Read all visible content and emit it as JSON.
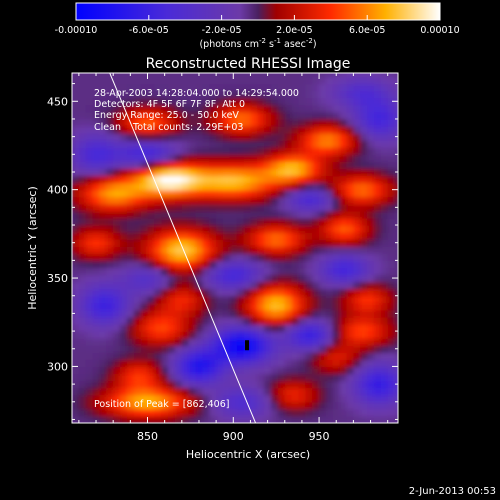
{
  "chart_data": {
    "type": "heatmap",
    "title": "Reconstructed RHESSI Image",
    "xlabel": "Heliocentric X (arcsec)",
    "ylabel": "Heliocentric Y (arcsec)",
    "xlim": [
      806,
      996
    ],
    "ylim": [
      268,
      466
    ],
    "xticks": [
      850,
      900,
      950
    ],
    "yticks": [
      300,
      350,
      400,
      450
    ],
    "colorbar": {
      "ticks": [
        "-0.00010",
        "-6.0e-05",
        "-2.0e-05",
        "2.0e-05",
        "6.0e-05",
        "0.00010"
      ],
      "range": [
        -0.0001,
        0.0001
      ],
      "unit_label": "(photons cm",
      "unit_sup1": "-2",
      "unit_mid": " s",
      "unit_sup2": "-1",
      "unit_end": " asec",
      "unit_sup3": "-2",
      "unit_close": ")"
    },
    "annotations": {
      "time_range": "28-Apr-2003 14:28:04.000 to 14:29:54.000",
      "detectors": "Detectors: 4F 5F 6F 7F 8F, Att 0",
      "energy_range": "Energy Range: 25.0 - 50.0 keV",
      "clean_totals": "Clean    Total counts: 2.29E+03",
      "peak_position": "Position of Peak = [862,406]"
    },
    "peak": [
      862,
      406
    ],
    "limb_line": [
      [
        828,
        466
      ],
      [
        913,
        268
      ]
    ],
    "blobs": [
      {
        "x": 862,
        "y": 406,
        "v": 1.0,
        "sx": 14,
        "sy": 7
      },
      {
        "x": 830,
        "y": 398,
        "v": 0.7,
        "sx": 14,
        "sy": 7
      },
      {
        "x": 900,
        "y": 405,
        "v": 0.8,
        "sx": 18,
        "sy": 7
      },
      {
        "x": 935,
        "y": 412,
        "v": 0.75,
        "sx": 12,
        "sy": 6
      },
      {
        "x": 975,
        "y": 400,
        "v": 0.6,
        "sx": 12,
        "sy": 6
      },
      {
        "x": 870,
        "y": 366,
        "v": 0.85,
        "sx": 14,
        "sy": 8
      },
      {
        "x": 820,
        "y": 370,
        "v": 0.45,
        "sx": 10,
        "sy": 6
      },
      {
        "x": 925,
        "y": 372,
        "v": 0.6,
        "sx": 12,
        "sy": 6
      },
      {
        "x": 965,
        "y": 378,
        "v": 0.55,
        "sx": 10,
        "sy": 6
      },
      {
        "x": 850,
        "y": 438,
        "v": 0.55,
        "sx": 12,
        "sy": 6
      },
      {
        "x": 905,
        "y": 440,
        "v": 0.6,
        "sx": 12,
        "sy": 6
      },
      {
        "x": 955,
        "y": 428,
        "v": 0.65,
        "sx": 12,
        "sy": 6
      },
      {
        "x": 925,
        "y": 335,
        "v": 0.8,
        "sx": 12,
        "sy": 8
      },
      {
        "x": 870,
        "y": 338,
        "v": 0.4,
        "sx": 10,
        "sy": 6
      },
      {
        "x": 978,
        "y": 338,
        "v": 0.45,
        "sx": 10,
        "sy": 6
      },
      {
        "x": 858,
        "y": 322,
        "v": 0.5,
        "sx": 12,
        "sy": 7
      },
      {
        "x": 975,
        "y": 320,
        "v": 0.5,
        "sx": 12,
        "sy": 6
      },
      {
        "x": 845,
        "y": 295,
        "v": 0.45,
        "sx": 10,
        "sy": 6
      },
      {
        "x": 960,
        "y": 305,
        "v": 0.35,
        "sx": 10,
        "sy": 6
      },
      {
        "x": 850,
        "y": 280,
        "v": 0.75,
        "sx": 18,
        "sy": 6
      },
      {
        "x": 935,
        "y": 284,
        "v": 0.4,
        "sx": 10,
        "sy": 6
      },
      {
        "x": 850,
        "y": 420,
        "v": -0.55,
        "sx": 12,
        "sy": 6
      },
      {
        "x": 820,
        "y": 420,
        "v": -0.45,
        "sx": 10,
        "sy": 8
      },
      {
        "x": 985,
        "y": 440,
        "v": -0.5,
        "sx": 10,
        "sy": 8
      },
      {
        "x": 945,
        "y": 395,
        "v": -0.45,
        "sx": 10,
        "sy": 5
      },
      {
        "x": 900,
        "y": 352,
        "v": -0.5,
        "sx": 12,
        "sy": 6
      },
      {
        "x": 850,
        "y": 350,
        "v": -0.35,
        "sx": 10,
        "sy": 6
      },
      {
        "x": 905,
        "y": 312,
        "v": -0.9,
        "sx": 12,
        "sy": 7
      },
      {
        "x": 880,
        "y": 300,
        "v": -0.7,
        "sx": 10,
        "sy": 7
      },
      {
        "x": 945,
        "y": 318,
        "v": -0.6,
        "sx": 10,
        "sy": 6
      },
      {
        "x": 825,
        "y": 335,
        "v": -0.55,
        "sx": 10,
        "sy": 8
      },
      {
        "x": 965,
        "y": 355,
        "v": -0.5,
        "sx": 10,
        "sy": 6
      },
      {
        "x": 985,
        "y": 290,
        "v": -0.6,
        "sx": 10,
        "sy": 8
      },
      {
        "x": 905,
        "y": 280,
        "v": -0.4,
        "sx": 12,
        "sy": 6
      },
      {
        "x": 975,
        "y": 455,
        "v": -0.35,
        "sx": 12,
        "sy": 6
      }
    ]
  },
  "footer": {
    "date": "2-Jun-2013 00:53"
  }
}
